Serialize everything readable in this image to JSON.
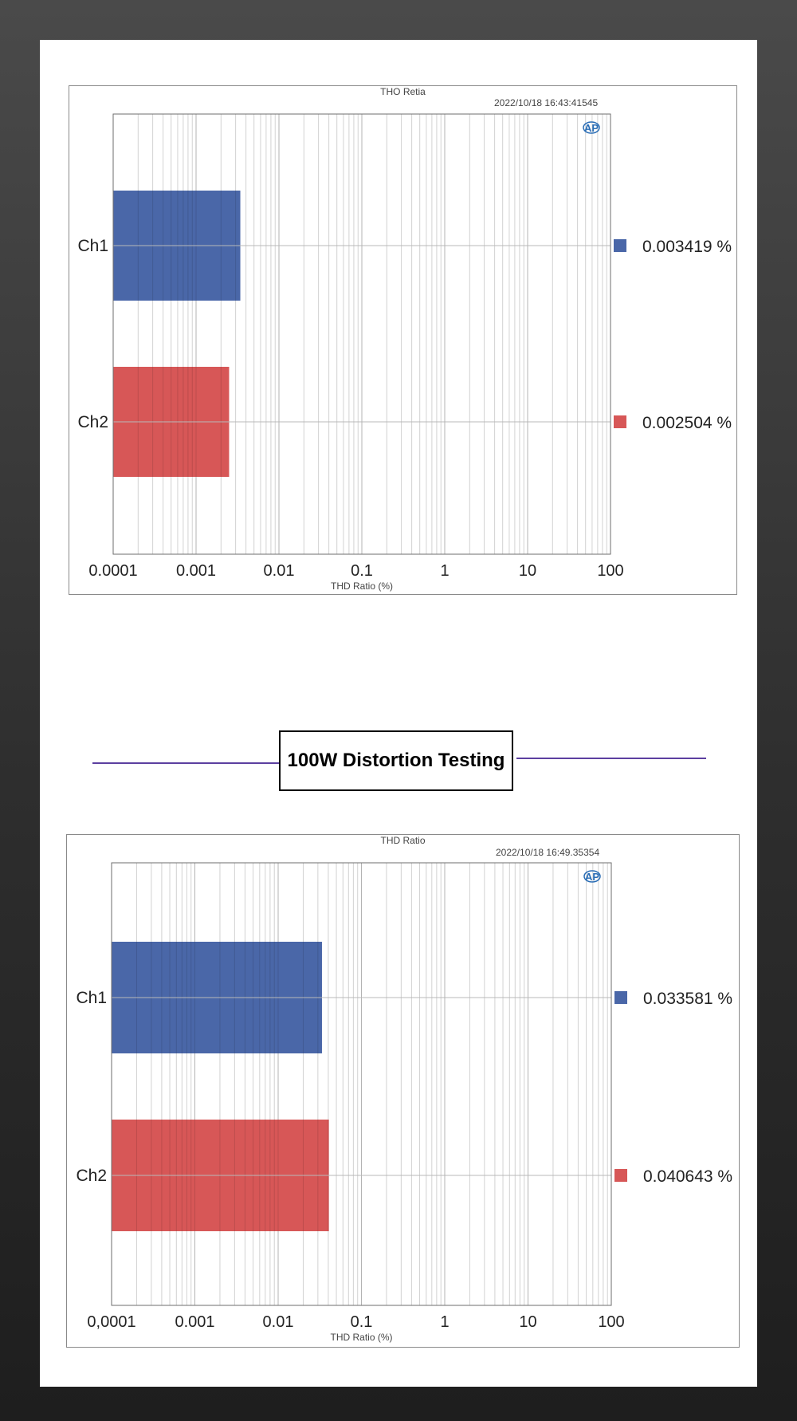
{
  "section_heading": "100W Distortion Testing",
  "colors": {
    "ch1": "#4a67a8",
    "ch2": "#d75757"
  },
  "chart_data": [
    {
      "type": "bar",
      "orientation": "horizontal",
      "title": "THO Retia",
      "timestamp": "2022/10/18 16:43:41545",
      "categories": [
        "Ch1",
        "Ch2"
      ],
      "values": [
        0.003419,
        0.002504
      ],
      "value_labels": [
        "0.003419 %",
        "0.002504 %"
      ],
      "xlabel": "THD Ratio (%)",
      "x_scale": "log",
      "xlim": [
        0.0001,
        100
      ],
      "x_ticks": [
        "0.0001",
        "0.001",
        "0.01",
        "0.1",
        "1",
        "10",
        "100"
      ],
      "grid": true,
      "legend": "right"
    },
    {
      "type": "bar",
      "orientation": "horizontal",
      "title": "THD Ratio",
      "timestamp": "2022/10/18 16:49.35354",
      "categories": [
        "Ch1",
        "Ch2"
      ],
      "values": [
        0.033581,
        0.040643
      ],
      "value_labels": [
        "0.033581 %",
        "0.040643 %"
      ],
      "xlabel": "THD Ratio (%)",
      "x_scale": "log",
      "xlim": [
        0.0001,
        100
      ],
      "x_ticks": [
        "0,0001",
        "0.001",
        "0.01",
        "0.1",
        "1",
        "10",
        "100"
      ],
      "grid": true,
      "legend": "right"
    }
  ]
}
